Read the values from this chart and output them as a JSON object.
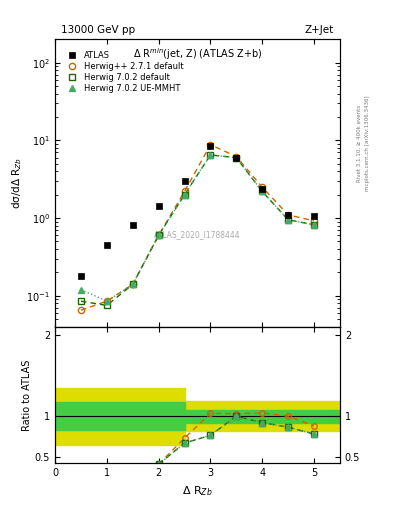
{
  "title_top": "13000 GeV pp",
  "title_right": "Z+Jet",
  "plot_title": "Δ R$^{min}$(jet, Z) (ATLAS Z+b)",
  "ylabel_main": "dσ/dΔ R$_{Zb}$",
  "ylabel_ratio": "Ratio to ATLAS",
  "xlabel": "Δ R$_{Zb}$",
  "watermark": "ATLAS_2020_I1788444",
  "right_label": "mcplots.cern.ch [arXiv:1306.3436]",
  "right_label2": "Rivet 3.1.10, ≥ 400k events",
  "xlim": [
    0,
    5.5
  ],
  "ylim_main": [
    0.04,
    200
  ],
  "ylim_ratio": [
    0.42,
    2.1
  ],
  "atlas_x": [
    0.5,
    1.0,
    1.5,
    2.0,
    2.5,
    3.0,
    3.5,
    4.0,
    4.5,
    5.0
  ],
  "atlas_y": [
    0.18,
    0.45,
    0.82,
    1.45,
    3.0,
    8.5,
    6.0,
    2.4,
    1.1,
    1.05
  ],
  "herwig271_x": [
    0.5,
    1.0,
    1.5,
    2.0,
    2.5,
    3.0,
    3.5,
    4.0,
    4.5,
    5.0
  ],
  "herwig271_y": [
    0.065,
    0.085,
    0.14,
    0.6,
    2.2,
    8.8,
    6.2,
    2.5,
    1.1,
    0.92
  ],
  "herwig702_x": [
    0.5,
    1.0,
    1.5,
    2.0,
    2.5,
    3.0,
    3.5,
    4.0,
    4.5,
    5.0
  ],
  "herwig702_y": [
    0.085,
    0.075,
    0.14,
    0.6,
    2.0,
    6.5,
    6.0,
    2.2,
    0.95,
    0.82
  ],
  "herwig702ue_x": [
    0.5,
    1.0,
    1.5,
    2.0,
    2.5,
    3.0,
    3.5,
    4.0,
    4.5,
    5.0
  ],
  "herwig702ue_y": [
    0.12,
    0.085,
    0.14,
    0.6,
    2.0,
    6.5,
    6.0,
    2.2,
    0.95,
    0.82
  ],
  "ratio_x": [
    2.0,
    2.5,
    3.0,
    3.5,
    4.0,
    4.5,
    5.0
  ],
  "ratio271_y": [
    0.41,
    0.73,
    1.035,
    1.03,
    1.04,
    1.0,
    0.88
  ],
  "ratio702_y": [
    0.41,
    0.67,
    0.765,
    1.0,
    0.92,
    0.865,
    0.78
  ],
  "ratio702ue_y": [
    0.41,
    0.67,
    0.765,
    1.0,
    0.92,
    0.865,
    0.78
  ],
  "band_yellow_x": [
    0.0,
    0.5,
    2.0,
    2.5,
    5.5
  ],
  "band_yellow_lo": [
    0.65,
    0.65,
    0.65,
    0.82,
    0.82
  ],
  "band_yellow_hi": [
    1.35,
    1.35,
    1.35,
    1.18,
    1.18
  ],
  "band_green_x": [
    0.0,
    0.5,
    2.0,
    2.5,
    5.5
  ],
  "band_green_lo": [
    0.83,
    0.83,
    0.83,
    0.92,
    0.92
  ],
  "band_green_hi": [
    1.17,
    1.17,
    1.17,
    1.08,
    1.08
  ],
  "color_atlas": "#000000",
  "color_herwig271": "#cc6600",
  "color_herwig702": "#226600",
  "color_herwig702ue": "#44aa66",
  "color_band_green": "#44cc44",
  "color_band_yellow": "#dddd00",
  "bg_color": "#ffffff"
}
